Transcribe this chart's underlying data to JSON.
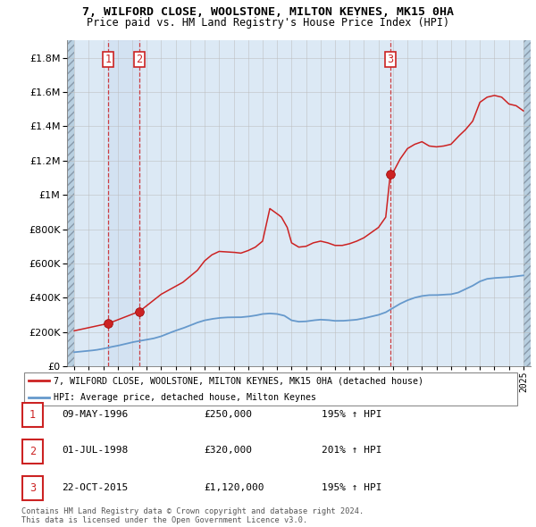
{
  "title_line1": "7, WILFORD CLOSE, WOOLSTONE, MILTON KEYNES, MK15 0HA",
  "title_line2": "Price paid vs. HM Land Registry's House Price Index (HPI)",
  "legend_line1": "7, WILFORD CLOSE, WOOLSTONE, MILTON KEYNES, MK15 0HA (detached house)",
  "legend_line2": "HPI: Average price, detached house, Milton Keynes",
  "dates_str": [
    "09-MAY-1996",
    "01-JUL-1998",
    "22-OCT-2015"
  ],
  "prices_str": [
    "£250,000",
    "£320,000",
    "£1,120,000"
  ],
  "hpi_pct_str": [
    "195% ↑ HPI",
    "201% ↑ HPI",
    "195% ↑ HPI"
  ],
  "footer": "Contains HM Land Registry data © Crown copyright and database right 2024.\nThis data is licensed under the Open Government Licence v3.0.",
  "hpi_color": "#6699cc",
  "price_color": "#cc2222",
  "bg_color": "#dce9f5",
  "hatch_color": "#b8cfe0",
  "grid_color": "#bbbbbb",
  "ylim": [
    0,
    1900000
  ],
  "yticks": [
    0,
    200000,
    400000,
    600000,
    800000,
    1000000,
    1200000,
    1400000,
    1600000,
    1800000
  ],
  "xlim_left": 1993.5,
  "xlim_right": 2025.5,
  "t1_year": 1996.36,
  "t2_year": 1998.5,
  "t3_year": 2015.81,
  "t1_price": 250000,
  "t2_price": 320000,
  "t3_price": 1120000,
  "hpi_anchors_x": [
    1994.0,
    1994.5,
    1995.0,
    1995.5,
    1996.0,
    1996.5,
    1997.0,
    1997.5,
    1998.0,
    1998.5,
    1999.0,
    1999.5,
    2000.0,
    2000.5,
    2001.0,
    2001.5,
    2002.0,
    2002.5,
    2003.0,
    2003.5,
    2004.0,
    2004.5,
    2005.0,
    2005.5,
    2006.0,
    2006.5,
    2007.0,
    2007.5,
    2008.0,
    2008.5,
    2009.0,
    2009.5,
    2010.0,
    2010.5,
    2011.0,
    2011.5,
    2012.0,
    2012.5,
    2013.0,
    2013.5,
    2014.0,
    2014.5,
    2015.0,
    2015.5,
    2016.0,
    2016.5,
    2017.0,
    2017.5,
    2018.0,
    2018.5,
    2019.0,
    2019.5,
    2020.0,
    2020.5,
    2021.0,
    2021.5,
    2022.0,
    2022.5,
    2023.0,
    2023.5,
    2024.0,
    2024.5,
    2025.0
  ],
  "hpi_anchors_v": [
    82000,
    86000,
    90000,
    95000,
    102000,
    112000,
    120000,
    130000,
    140000,
    148000,
    155000,
    163000,
    175000,
    192000,
    208000,
    222000,
    238000,
    255000,
    268000,
    276000,
    282000,
    285000,
    286000,
    286000,
    290000,
    296000,
    305000,
    308000,
    305000,
    295000,
    268000,
    260000,
    262000,
    268000,
    272000,
    270000,
    265000,
    265000,
    268000,
    272000,
    280000,
    290000,
    300000,
    315000,
    340000,
    365000,
    385000,
    400000,
    410000,
    415000,
    415000,
    418000,
    420000,
    430000,
    450000,
    470000,
    495000,
    510000,
    515000,
    518000,
    520000,
    525000,
    530000
  ],
  "prop_anchors_x": [
    1994.0,
    1996.36,
    1998.5,
    2000.0,
    2001.5,
    2002.5,
    2003.0,
    2003.5,
    2004.0,
    2005.0,
    2005.5,
    2006.0,
    2006.5,
    2007.0,
    2007.5,
    2008.0,
    2008.3,
    2008.7,
    2009.0,
    2009.5,
    2010.0,
    2010.5,
    2011.0,
    2011.5,
    2012.0,
    2012.5,
    2013.0,
    2013.5,
    2014.0,
    2014.5,
    2015.0,
    2015.5,
    2015.81,
    2016.0,
    2016.5,
    2017.0,
    2017.5,
    2018.0,
    2018.5,
    2019.0,
    2019.5,
    2020.0,
    2020.5,
    2021.0,
    2021.5,
    2022.0,
    2022.5,
    2023.0,
    2023.5,
    2024.0,
    2024.5,
    2025.0
  ],
  "prop_anchors_v": [
    207000,
    250000,
    320000,
    420000,
    490000,
    560000,
    615000,
    650000,
    670000,
    665000,
    660000,
    675000,
    695000,
    730000,
    920000,
    890000,
    870000,
    810000,
    720000,
    695000,
    700000,
    720000,
    730000,
    720000,
    705000,
    705000,
    715000,
    730000,
    750000,
    780000,
    810000,
    870000,
    1120000,
    1130000,
    1210000,
    1270000,
    1295000,
    1310000,
    1285000,
    1280000,
    1285000,
    1295000,
    1340000,
    1380000,
    1430000,
    1540000,
    1570000,
    1580000,
    1570000,
    1530000,
    1520000,
    1490000
  ]
}
